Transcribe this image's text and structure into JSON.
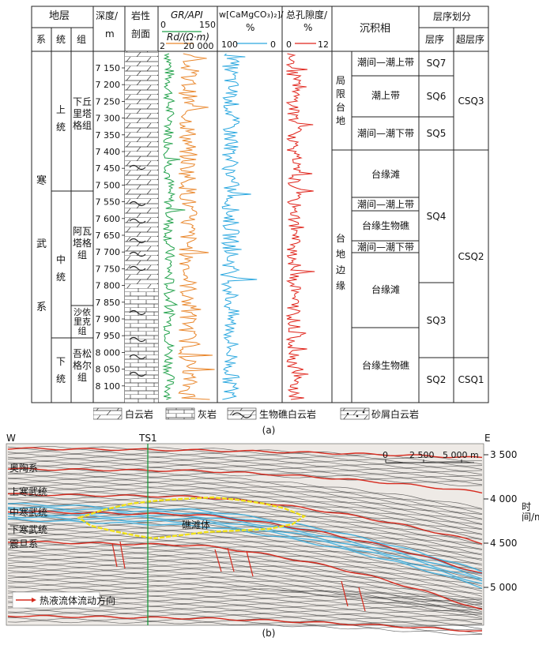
{
  "fig_a": {
    "header": {
      "stratum": "地层",
      "depth": "深度/",
      "depth_unit": "m",
      "lith_1": "岩性",
      "lith_2": "剖面",
      "gr_label": "GR/API",
      "gr_min": "0",
      "gr_max": "150",
      "rd_label": "Rd/(Ω·m)",
      "rd_min": "2",
      "rd_max": "20 000",
      "w_label": "w[CaMgCO₃)₂]/",
      "w_unit": "%",
      "w_min": "100",
      "w_max": "0",
      "por_label": "总孔隙度/",
      "por_unit": "%",
      "por_min": "0",
      "por_max": "12",
      "facies": "沉积相",
      "seq_div": "层序划分",
      "col_system": "系",
      "col_series": "统",
      "col_formation": "组",
      "col_seq": "层序",
      "col_superseq": "超层序"
    },
    "system": "寒武系",
    "series": [
      "上统",
      "中统",
      "下统"
    ],
    "formations": [
      "下丘里塔格组",
      "阿瓦塔格组",
      "沙依里克组",
      "吾松格尔组"
    ],
    "depth_ticks": [
      "7 150",
      "7 200",
      "7 250",
      "7 300",
      "7 350",
      "7 400",
      "7 450",
      "7 500",
      "7 550",
      "7 600",
      "7 650",
      "7 700",
      "7 750",
      "7 800",
      "7 850",
      "7 900",
      "7 950",
      "8 000",
      "8 050",
      "8 100"
    ],
    "facies_groups": [
      "局限台地",
      "台地边缘"
    ],
    "facies": [
      "潮间—潮上带",
      "潮上带",
      "潮间—潮下带",
      "台缘滩",
      "潮间—潮上带",
      "台缘生物礁",
      "潮间—潮下带",
      "台缘滩",
      "台缘生物礁"
    ],
    "sequences": [
      "SQ7",
      "SQ6",
      "SQ5",
      "SQ4",
      "SQ3",
      "SQ2"
    ],
    "super_sequences": [
      "CSQ3",
      "CSQ2",
      "CSQ1"
    ],
    "legend": [
      "白云岩",
      "灰岩",
      "生物礁白云岩",
      "砂屑白云岩"
    ],
    "caption": "(a)"
  },
  "fig_b": {
    "west": "W",
    "east": "E",
    "well": "TS1",
    "scale_labels": [
      "0",
      "2 500",
      "5 000 m"
    ],
    "time_ticks": [
      "3 500",
      "4 000",
      "4 500",
      "5 000"
    ],
    "time_axis_label": "时间/ms",
    "horizons": [
      "奥陶系",
      "上寒武统",
      "中寒武统",
      "下寒武统",
      "震旦系"
    ],
    "reef_label": "礁滩体",
    "legend_flow": "热液流体流动方向",
    "caption": "(b)",
    "colors": {
      "horizon_red": "#d62a1e",
      "blue_band": "#35aee0",
      "reef_yellow": "#f2e21a",
      "well_green": "#1a9a3c"
    }
  }
}
